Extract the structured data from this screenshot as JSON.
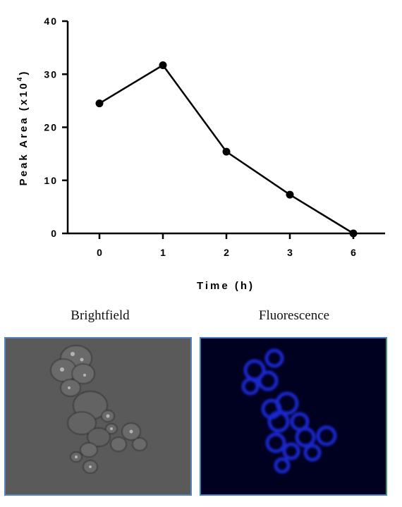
{
  "chart_data": {
    "type": "line",
    "categories": [
      "0",
      "1",
      "2",
      "3",
      "6"
    ],
    "values": [
      24.5,
      31.7,
      15.4,
      7.3,
      0
    ],
    "ylim": [
      0,
      40
    ],
    "yticks": [
      0,
      10,
      20,
      30,
      40
    ],
    "ylabel_main": "Peak Area (x10",
    "ylabel_sup": "4",
    "ylabel_close": ")",
    "xlabel": "Time (h)",
    "grid": false,
    "legend": "none",
    "line_color": "#000000",
    "marker_color": "#000000"
  },
  "panels": {
    "brightfield_title": "Brightfield",
    "fluorescence_title": "Fluorescence",
    "brightfield_bg": "#5a5a5a",
    "fluorescence_bg": "#000021",
    "fluorescence_stain": "#1c2bd6"
  }
}
